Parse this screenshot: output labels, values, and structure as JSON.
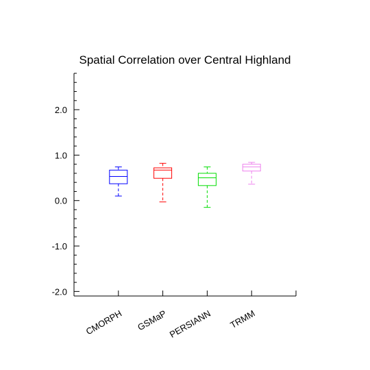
{
  "chart_data": {
    "type": "box",
    "title": "Spatial Correlation over Central Highland",
    "xlabel": "",
    "ylabel": "",
    "ylim": [
      -2.1,
      2.8
    ],
    "yticks": [
      {
        "value": -2.0,
        "label": "-2.0"
      },
      {
        "value": -1.0,
        "label": "-1.0"
      },
      {
        "value": 0.0,
        "label": "0.0"
      },
      {
        "value": 1.0,
        "label": "1.0"
      },
      {
        "value": 2.0,
        "label": "2.0"
      }
    ],
    "categories": [
      "CMORPH",
      "GSMaP",
      "PERSIANN",
      "TRMM"
    ],
    "boxes": [
      {
        "category": "CMORPH",
        "color": "#0000ff",
        "min": 0.1,
        "q1": 0.37,
        "median": 0.53,
        "q3": 0.67,
        "max": 0.74
      },
      {
        "category": "GSMaP",
        "color": "#ff0000",
        "min": -0.03,
        "q1": 0.49,
        "median": 0.67,
        "q3": 0.72,
        "max": 0.82
      },
      {
        "category": "PERSIANN",
        "color": "#00dd00",
        "min": -0.15,
        "q1": 0.33,
        "median": 0.5,
        "q3": 0.6,
        "max": 0.74
      },
      {
        "category": "TRMM",
        "color": "#ee82ee",
        "min": 0.36,
        "q1": 0.65,
        "median": 0.74,
        "q3": 0.8,
        "max": 0.84
      }
    ],
    "grid": false
  }
}
